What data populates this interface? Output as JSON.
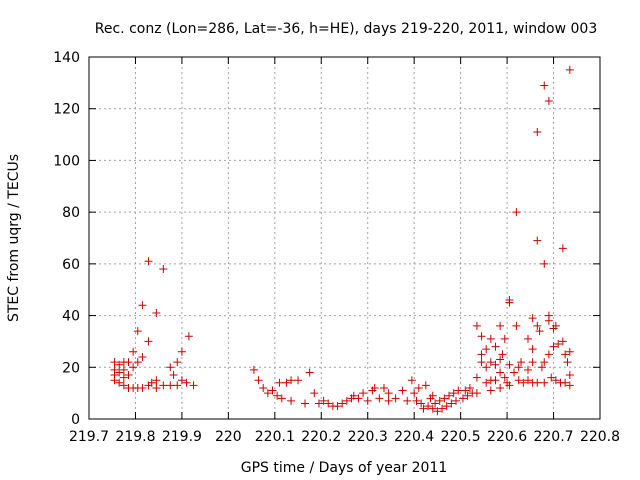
{
  "chart_data": {
    "type": "scatter",
    "title": "Rec. conz (Lon=286, Lat=-36, h=HE), days 219-220, 2011, window 003",
    "xlabel": "GPS time / Days of year 2011",
    "ylabel": "STEC from uqrg / TECUs",
    "xlim": [
      219.7,
      220.8
    ],
    "ylim": [
      0,
      140
    ],
    "xticks": [
      "219.7",
      "219.8",
      "219.9",
      "220",
      "220.1",
      "220.2",
      "220.3",
      "220.4",
      "220.5",
      "220.6",
      "220.7",
      "220.8"
    ],
    "yticks": [
      "0",
      "20",
      "40",
      "60",
      "80",
      "100",
      "120",
      "140"
    ],
    "grid": true,
    "marker": "+",
    "color": "#cc0000",
    "series": [
      {
        "name": "STEC",
        "points": [
          [
            219.755,
            22
          ],
          [
            219.755,
            19
          ],
          [
            219.755,
            17
          ],
          [
            219.755,
            15
          ],
          [
            219.765,
            21
          ],
          [
            219.765,
            18
          ],
          [
            219.765,
            14
          ],
          [
            219.775,
            22
          ],
          [
            219.775,
            19
          ],
          [
            219.775,
            16
          ],
          [
            219.775,
            13
          ],
          [
            219.785,
            22
          ],
          [
            219.785,
            17
          ],
          [
            219.785,
            12
          ],
          [
            219.795,
            26
          ],
          [
            219.795,
            20
          ],
          [
            219.795,
            12
          ],
          [
            219.805,
            34
          ],
          [
            219.805,
            22
          ],
          [
            219.805,
            12
          ],
          [
            219.815,
            44
          ],
          [
            219.815,
            24
          ],
          [
            219.815,
            12
          ],
          [
            219.828,
            61
          ],
          [
            219.828,
            30
          ],
          [
            219.828,
            13
          ],
          [
            219.835,
            14
          ],
          [
            219.845,
            41
          ],
          [
            219.845,
            15
          ],
          [
            219.845,
            12
          ],
          [
            219.86,
            58
          ],
          [
            219.86,
            13
          ],
          [
            219.875,
            20
          ],
          [
            219.875,
            13
          ],
          [
            219.882,
            17
          ],
          [
            219.89,
            22
          ],
          [
            219.89,
            13
          ],
          [
            219.9,
            26
          ],
          [
            219.9,
            15
          ],
          [
            219.91,
            14
          ],
          [
            219.915,
            32
          ],
          [
            219.925,
            13
          ],
          [
            220.055,
            19
          ],
          [
            220.065,
            15
          ],
          [
            220.075,
            12
          ],
          [
            220.085,
            10
          ],
          [
            220.095,
            11
          ],
          [
            220.105,
            9
          ],
          [
            220.11,
            14
          ],
          [
            220.115,
            8
          ],
          [
            220.125,
            14
          ],
          [
            220.135,
            15
          ],
          [
            220.135,
            7
          ],
          [
            220.15,
            15
          ],
          [
            220.165,
            6
          ],
          [
            220.175,
            18
          ],
          [
            220.185,
            10
          ],
          [
            220.195,
            6
          ],
          [
            220.205,
            7
          ],
          [
            220.215,
            6
          ],
          [
            220.225,
            5
          ],
          [
            220.235,
            5
          ],
          [
            220.245,
            6
          ],
          [
            220.255,
            7
          ],
          [
            220.265,
            8
          ],
          [
            220.27,
            9
          ],
          [
            220.28,
            8
          ],
          [
            220.29,
            10
          ],
          [
            220.3,
            7
          ],
          [
            220.31,
            11
          ],
          [
            220.315,
            12
          ],
          [
            220.325,
            8
          ],
          [
            220.335,
            12
          ],
          [
            220.345,
            10
          ],
          [
            220.345,
            7
          ],
          [
            220.36,
            8
          ],
          [
            220.375,
            11
          ],
          [
            220.385,
            7
          ],
          [
            220.395,
            15
          ],
          [
            220.4,
            10
          ],
          [
            220.405,
            7
          ],
          [
            220.41,
            12
          ],
          [
            220.415,
            6
          ],
          [
            220.42,
            4
          ],
          [
            220.425,
            13
          ],
          [
            220.43,
            5
          ],
          [
            220.435,
            8
          ],
          [
            220.44,
            9
          ],
          [
            220.44,
            4
          ],
          [
            220.445,
            6
          ],
          [
            220.45,
            3
          ],
          [
            220.455,
            7
          ],
          [
            220.46,
            4
          ],
          [
            220.465,
            8
          ],
          [
            220.47,
            5
          ],
          [
            220.475,
            9
          ],
          [
            220.48,
            6
          ],
          [
            220.485,
            10
          ],
          [
            220.49,
            7
          ],
          [
            220.495,
            11
          ],
          [
            220.505,
            8
          ],
          [
            220.51,
            11
          ],
          [
            220.515,
            9
          ],
          [
            220.52,
            12
          ],
          [
            220.525,
            10
          ],
          [
            220.535,
            36
          ],
          [
            220.535,
            16
          ],
          [
            220.535,
            10
          ],
          [
            220.545,
            32
          ],
          [
            220.545,
            25
          ],
          [
            220.545,
            22
          ],
          [
            220.555,
            27
          ],
          [
            220.555,
            20
          ],
          [
            220.555,
            14
          ],
          [
            220.565,
            31
          ],
          [
            220.565,
            22
          ],
          [
            220.565,
            15
          ],
          [
            220.565,
            11
          ],
          [
            220.575,
            28
          ],
          [
            220.575,
            21
          ],
          [
            220.575,
            15
          ],
          [
            220.585,
            36
          ],
          [
            220.585,
            23
          ],
          [
            220.585,
            18
          ],
          [
            220.585,
            12
          ],
          [
            220.59,
            25
          ],
          [
            220.595,
            31
          ],
          [
            220.595,
            16
          ],
          [
            220.6,
            14
          ],
          [
            220.605,
            46
          ],
          [
            220.605,
            45
          ],
          [
            220.605,
            21
          ],
          [
            220.605,
            13
          ],
          [
            220.615,
            18
          ],
          [
            220.62,
            80
          ],
          [
            220.62,
            36
          ],
          [
            220.625,
            20
          ],
          [
            220.625,
            15
          ],
          [
            220.63,
            22
          ],
          [
            220.635,
            14
          ],
          [
            220.645,
            31
          ],
          [
            220.645,
            19
          ],
          [
            220.645,
            15
          ],
          [
            220.655,
            39
          ],
          [
            220.655,
            27
          ],
          [
            220.655,
            22
          ],
          [
            220.655,
            14
          ],
          [
            220.665,
            111
          ],
          [
            220.665,
            69
          ],
          [
            220.665,
            36
          ],
          [
            220.665,
            14
          ],
          [
            220.67,
            34
          ],
          [
            220.675,
            20
          ],
          [
            220.68,
            129
          ],
          [
            220.68,
            60
          ],
          [
            220.68,
            22
          ],
          [
            220.68,
            14
          ],
          [
            220.69,
            123
          ],
          [
            220.69,
            40
          ],
          [
            220.69,
            38
          ],
          [
            220.69,
            25
          ],
          [
            220.695,
            16
          ],
          [
            220.7,
            35
          ],
          [
            220.7,
            28
          ],
          [
            220.705,
            36
          ],
          [
            220.705,
            15
          ],
          [
            220.71,
            29
          ],
          [
            220.715,
            14
          ],
          [
            220.72,
            66
          ],
          [
            220.72,
            30
          ],
          [
            220.725,
            25
          ],
          [
            220.725,
            14
          ],
          [
            220.73,
            22
          ],
          [
            220.735,
            135
          ],
          [
            220.735,
            26
          ],
          [
            220.735,
            17
          ],
          [
            220.735,
            13
          ]
        ]
      }
    ]
  }
}
